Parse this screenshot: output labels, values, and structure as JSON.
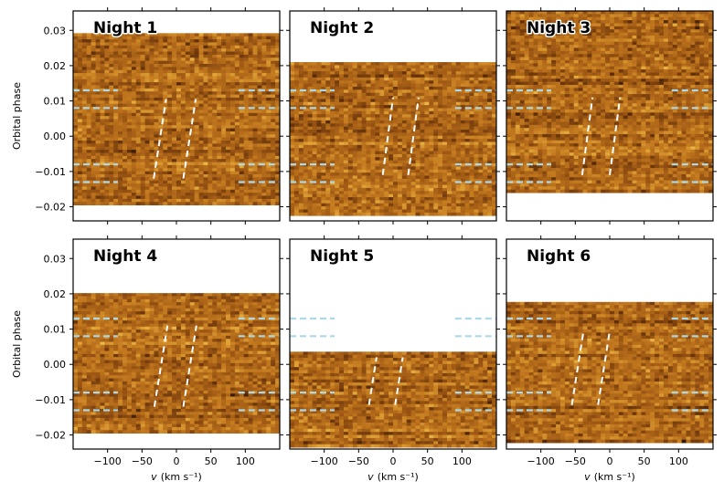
{
  "chart_data": {
    "type": "heatmap",
    "layout": "2x3 grid",
    "xlabel": "v (km s⁻¹)",
    "xlabel_main": "v",
    "xlabel_unit": "(km s⁻¹)",
    "ylabel": "Orbital phase",
    "xlim": [
      -150,
      150
    ],
    "ylim": [
      -0.024,
      0.0355
    ],
    "xticks": [
      -100,
      -50,
      0,
      50,
      100
    ],
    "yticks": [
      -0.02,
      -0.01,
      0.0,
      0.01,
      0.02,
      0.03
    ],
    "xtick_labels": [
      "−100",
      "−50",
      "0",
      "50",
      "100"
    ],
    "ytick_labels": [
      "−0.02",
      "−0.01",
      "0.00",
      "0.01",
      "0.02",
      "0.03"
    ],
    "colormap": [
      "#1a0d05",
      "#5a2c0a",
      "#9a5513",
      "#c47a1f",
      "#e3a73a",
      "#f3cf5c"
    ],
    "reference_line_color": "#add8e6",
    "track_line_color": "#ffffff",
    "transit_markers": [
      -0.013,
      -0.008,
      0.008,
      0.013
    ],
    "panels": [
      {
        "title": "Night 1",
        "phase_range": [
          -0.0195,
          0.0292
        ],
        "tracks": [
          {
            "x1": -33,
            "y1": -0.012,
            "x2": -15,
            "y2": 0.0105
          },
          {
            "x1": 10,
            "y1": -0.012,
            "x2": 28,
            "y2": 0.0105
          }
        ]
      },
      {
        "title": "Night 2",
        "phase_range": [
          -0.0225,
          0.021
        ],
        "tracks": [
          {
            "x1": -15,
            "y1": -0.011,
            "x2": 0,
            "y2": 0.011
          },
          {
            "x1": 22,
            "y1": -0.011,
            "x2": 37,
            "y2": 0.011
          }
        ]
      },
      {
        "title": "Night 3",
        "phase_range": [
          -0.016,
          0.0355
        ],
        "tracks": [
          {
            "x1": -40,
            "y1": -0.011,
            "x2": -25,
            "y2": 0.011
          },
          {
            "x1": 0,
            "y1": -0.011,
            "x2": 15,
            "y2": 0.011
          }
        ]
      },
      {
        "title": "Night 4",
        "phase_range": [
          -0.0195,
          0.0202
        ],
        "tracks": [
          {
            "x1": -32,
            "y1": -0.012,
            "x2": -13,
            "y2": 0.011
          },
          {
            "x1": 10,
            "y1": -0.012,
            "x2": 29,
            "y2": 0.011
          }
        ]
      },
      {
        "title": "Night 5",
        "phase_range": [
          -0.0235,
          0.0036
        ],
        "tracks": [
          {
            "x1": -35,
            "y1": -0.0115,
            "x2": -24,
            "y2": 0.002
          },
          {
            "x1": 3,
            "y1": -0.0115,
            "x2": 14,
            "y2": 0.002
          }
        ]
      },
      {
        "title": "Night 6",
        "phase_range": [
          -0.0222,
          0.0177
        ],
        "tracks": [
          {
            "x1": -55,
            "y1": -0.0115,
            "x2": -38,
            "y2": 0.0095
          },
          {
            "x1": -17,
            "y1": -0.0115,
            "x2": 0,
            "y2": 0.0095
          }
        ]
      }
    ]
  }
}
